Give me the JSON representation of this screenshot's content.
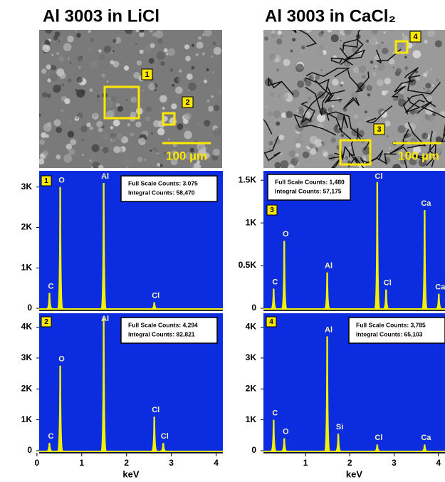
{
  "panels": [
    {
      "title": "Al 3003 in LiCl",
      "image": {
        "markers": [
          "1",
          "2"
        ],
        "scale_bar": "100 µm"
      }
    },
    {
      "title": "Al 3003 in CaCl₂",
      "image": {
        "markers": [
          "4",
          "3"
        ],
        "scale_bar": "100 µm"
      }
    }
  ],
  "chart_data": [
    {
      "type": "spectrum",
      "panel": "1",
      "info": [
        "Full Scale Counts: 3.075",
        "Integral Counts: 58,470"
      ],
      "color": "#f2f200",
      "background": "#0c2ce0",
      "x": [
        0.28,
        0.52,
        1.49,
        2.62
      ],
      "values": [
        380,
        3000,
        3100,
        150
      ],
      "peak_labels": [
        "C",
        "O",
        "Al",
        "Cl"
      ],
      "xlim": [
        0.05,
        4.15
      ],
      "ylim": [
        0,
        3400
      ],
      "yticks": [
        0,
        {
          "value": 1000,
          "label": "1K"
        },
        {
          "value": 2000,
          "label": "2K"
        },
        {
          "value": 3000,
          "label": "3K"
        }
      ]
    },
    {
      "type": "spectrum",
      "panel": "2",
      "info": [
        "Full Scale Counts: 4,294",
        "Integral Counts: 82,821"
      ],
      "color": "#f2f200",
      "background": "#0c2ce0",
      "x": [
        0.28,
        0.52,
        1.49,
        2.62,
        2.82
      ],
      "values": [
        250,
        2750,
        4300,
        1100,
        250
      ],
      "peak_labels": [
        "C",
        "O",
        "Al",
        "Cl",
        "Cl"
      ],
      "xlim": [
        0.05,
        4.15
      ],
      "ylim": [
        0,
        4450
      ],
      "xlabel": "keV",
      "xticks": [
        0,
        1,
        2,
        3,
        4
      ],
      "yticks": [
        0,
        {
          "value": 1000,
          "label": "1K"
        },
        {
          "value": 2000,
          "label": "2K"
        },
        {
          "value": 3000,
          "label": "3K"
        },
        {
          "value": 4000,
          "label": "4K"
        }
      ]
    },
    {
      "type": "spectrum",
      "panel": "3",
      "info": [
        "Full Scale Counts: 1,480",
        "Integral Counts: 57,175"
      ],
      "color": "#f2f200",
      "background": "#0c2ce0",
      "x": [
        0.28,
        0.52,
        1.49,
        2.62,
        2.82,
        3.69,
        4.01
      ],
      "values": [
        230,
        790,
        420,
        1480,
        220,
        1150,
        170
      ],
      "peak_labels": [
        "C",
        "O",
        "Al",
        "Cl",
        "Cl",
        "Ca",
        "Ca"
      ],
      "xlim": [
        0.05,
        4.15
      ],
      "ylim": [
        0,
        1610
      ],
      "yticks": [
        0,
        {
          "value": 500,
          "label": "0.5K"
        },
        {
          "value": 1000,
          "label": "1K"
        },
        {
          "value": 1500,
          "label": "1.5K"
        }
      ]
    },
    {
      "type": "spectrum",
      "panel": "4",
      "info": [
        "Full Scale Counts: 3,785",
        "Integral Counts: 65,103"
      ],
      "color": "#f2f200",
      "background": "#0c2ce0",
      "x": [
        0.28,
        0.52,
        1.49,
        1.74,
        2.62,
        3.69
      ],
      "values": [
        1000,
        400,
        3700,
        550,
        200,
        200
      ],
      "peak_labels": [
        "C",
        "O",
        "Al",
        "Si",
        "Cl",
        "Ca"
      ],
      "xlim": [
        0.05,
        4.15
      ],
      "ylim": [
        0,
        4450
      ],
      "xlabel": "keV",
      "xticks": [
        1,
        2,
        3,
        4
      ],
      "yticks": [
        0,
        {
          "value": 1000,
          "label": "1K"
        },
        {
          "value": 2000,
          "label": "2K"
        },
        {
          "value": 3000,
          "label": "3K"
        },
        {
          "value": 4000,
          "label": "4K"
        }
      ]
    }
  ]
}
